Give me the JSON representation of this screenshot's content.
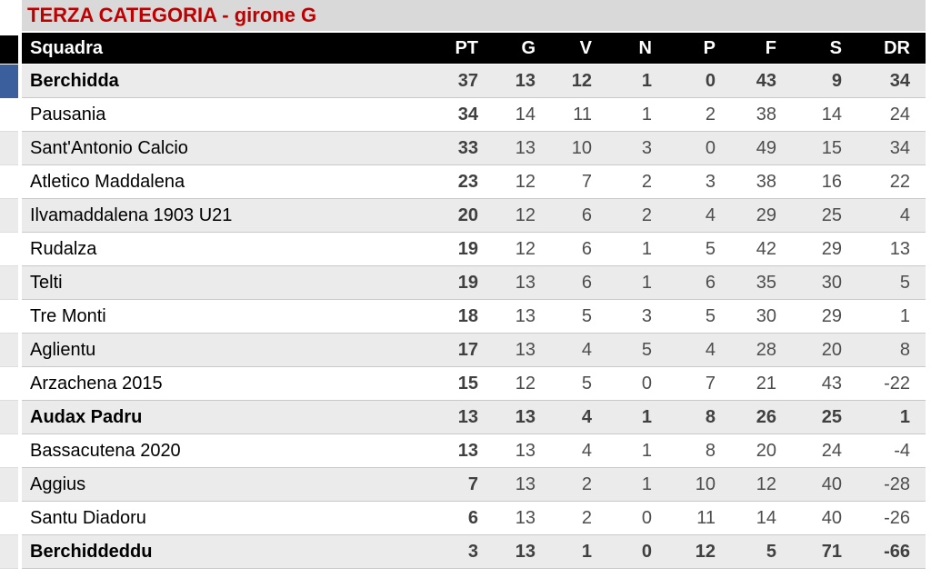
{
  "title": "TERZA CATEGORIA - girone G",
  "colors": {
    "title_text": "#c00000",
    "title_bg": "#d9d9d9",
    "header_bg": "#000000",
    "header_text": "#ffffff",
    "stripe_bg": "#ebebeb",
    "row_bg": "#ffffff",
    "leader_marker": "#3b5f9c",
    "number_text": "#4d4d4d"
  },
  "chart_data": {
    "type": "table",
    "title": "TERZA CATEGORIA - girone G",
    "columns": [
      "Squadra",
      "PT",
      "G",
      "V",
      "N",
      "P",
      "F",
      "S",
      "DR"
    ],
    "rows": [
      {
        "team": "Berchidda",
        "values": [
          37,
          13,
          12,
          1,
          0,
          43,
          9,
          34
        ],
        "bold": true,
        "highlighted": true
      },
      {
        "team": "Pausania",
        "values": [
          34,
          14,
          11,
          1,
          2,
          38,
          14,
          24
        ],
        "bold": false,
        "highlighted": false
      },
      {
        "team": "Sant'Antonio Calcio",
        "values": [
          33,
          13,
          10,
          3,
          0,
          49,
          15,
          34
        ],
        "bold": false,
        "highlighted": false
      },
      {
        "team": "Atletico Maddalena",
        "values": [
          23,
          12,
          7,
          2,
          3,
          38,
          16,
          22
        ],
        "bold": false,
        "highlighted": false
      },
      {
        "team": "Ilvamaddalena 1903 U21",
        "values": [
          20,
          12,
          6,
          2,
          4,
          29,
          25,
          4
        ],
        "bold": false,
        "highlighted": false
      },
      {
        "team": "Rudalza",
        "values": [
          19,
          12,
          6,
          1,
          5,
          42,
          29,
          13
        ],
        "bold": false,
        "highlighted": false
      },
      {
        "team": "Telti",
        "values": [
          19,
          13,
          6,
          1,
          6,
          35,
          30,
          5
        ],
        "bold": false,
        "highlighted": false
      },
      {
        "team": "Tre Monti",
        "values": [
          18,
          13,
          5,
          3,
          5,
          30,
          29,
          1
        ],
        "bold": false,
        "highlighted": false
      },
      {
        "team": "Aglientu",
        "values": [
          17,
          13,
          4,
          5,
          4,
          28,
          20,
          8
        ],
        "bold": false,
        "highlighted": false
      },
      {
        "team": "Arzachena 2015",
        "values": [
          15,
          12,
          5,
          0,
          7,
          21,
          43,
          -22
        ],
        "bold": false,
        "highlighted": false
      },
      {
        "team": "Audax Padru",
        "values": [
          13,
          13,
          4,
          1,
          8,
          26,
          25,
          1
        ],
        "bold": true,
        "highlighted": false
      },
      {
        "team": "Bassacutena 2020",
        "values": [
          13,
          13,
          4,
          1,
          8,
          20,
          24,
          -4
        ],
        "bold": false,
        "highlighted": false
      },
      {
        "team": "Aggius",
        "values": [
          7,
          13,
          2,
          1,
          10,
          12,
          40,
          -28
        ],
        "bold": false,
        "highlighted": false
      },
      {
        "team": "Santu Diadoru",
        "values": [
          6,
          13,
          2,
          0,
          11,
          14,
          40,
          -26
        ],
        "bold": false,
        "highlighted": false
      },
      {
        "team": "Berchiddeddu",
        "values": [
          3,
          13,
          1,
          0,
          12,
          5,
          71,
          -66
        ],
        "bold": true,
        "highlighted": false
      }
    ]
  }
}
